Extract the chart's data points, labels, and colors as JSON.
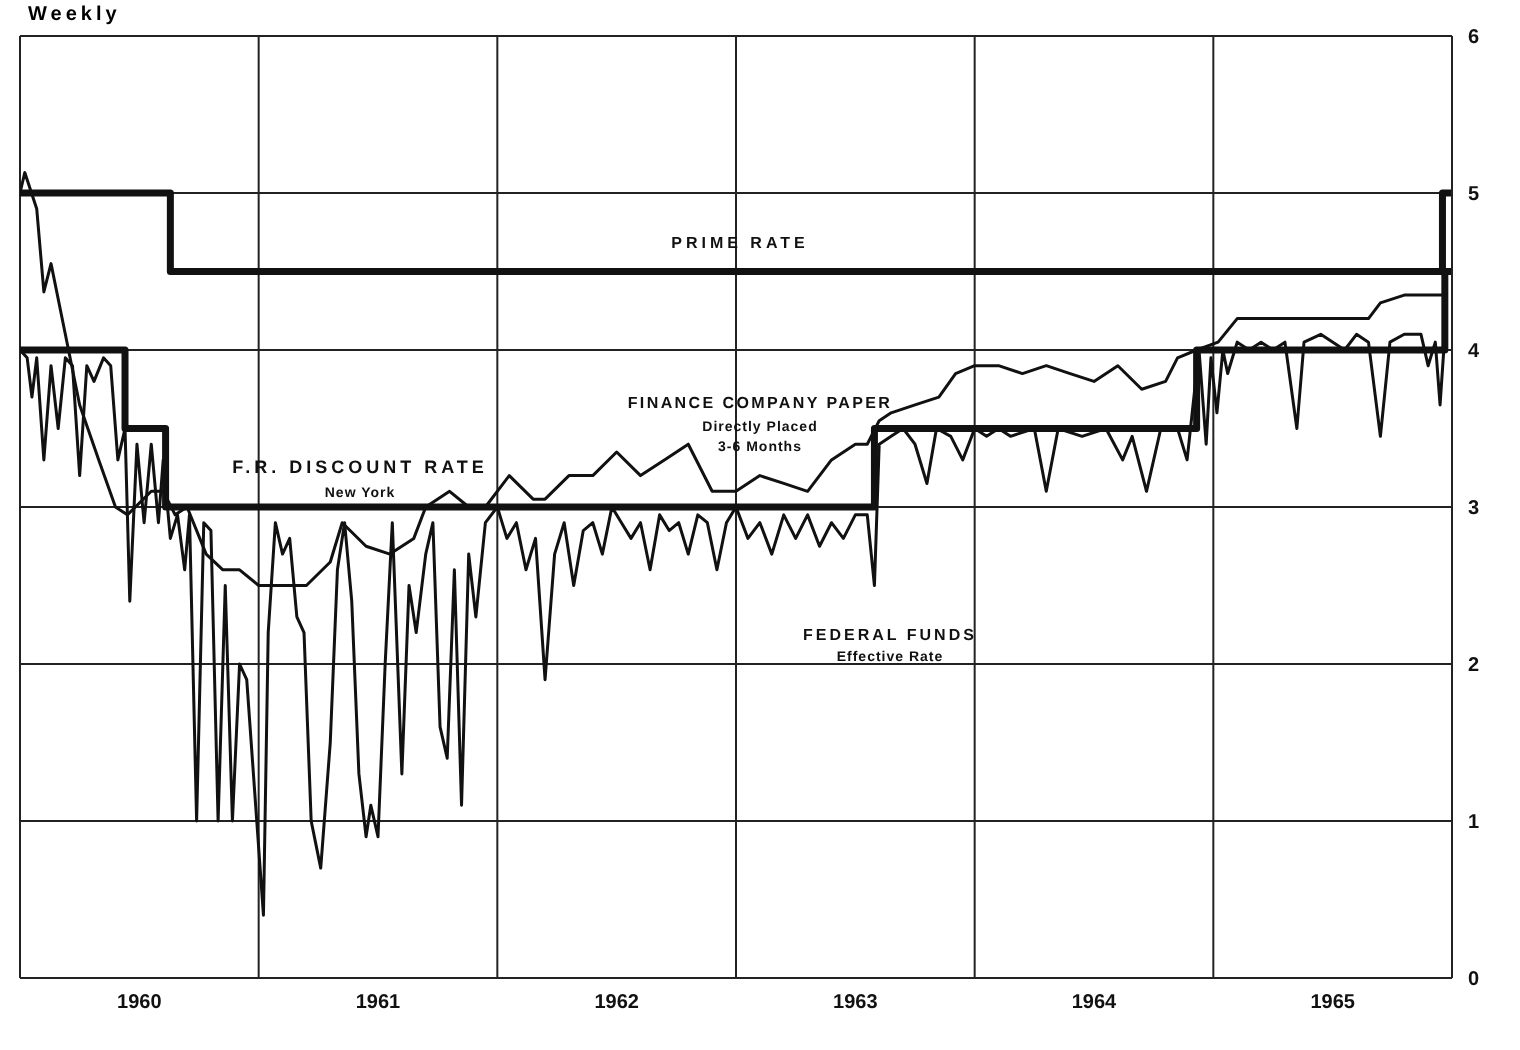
{
  "chart_data": {
    "type": "line",
    "subtitle": "Weekly",
    "xlim": [
      1960,
      1966
    ],
    "xticks": [
      {
        "value": 1960,
        "label": null
      },
      {
        "value": 1960.5,
        "label": "1960"
      },
      {
        "value": 1961,
        "label": null
      },
      {
        "value": 1961.5,
        "label": "1961"
      },
      {
        "value": 1962,
        "label": null
      },
      {
        "value": 1962.5,
        "label": "1962"
      },
      {
        "value": 1963,
        "label": null
      },
      {
        "value": 1963.5,
        "label": "1963"
      },
      {
        "value": 1964,
        "label": null
      },
      {
        "value": 1964.5,
        "label": "1964"
      },
      {
        "value": 1965,
        "label": null
      },
      {
        "value": 1965.5,
        "label": "1965"
      },
      {
        "value": 1966,
        "label": null
      }
    ],
    "ylim": [
      0,
      6
    ],
    "yticks": [
      0,
      1,
      2,
      3,
      4,
      5,
      6
    ],
    "grid": true,
    "marker": "none",
    "series": [
      {
        "type": "step",
        "color": "#111111",
        "x": [
          1960,
          1960.63,
          1965.96,
          1966
        ],
        "values": [
          5,
          4.5,
          5,
          5
        ]
      },
      {
        "type": "step",
        "color": "#111111",
        "x": [
          1960,
          1960.44,
          1960.61,
          1963.58,
          1964.93,
          1965.97,
          1966
        ],
        "values": [
          4,
          3.5,
          3,
          3.5,
          4,
          4.5,
          4.5
        ]
      },
      {
        "color": "#111111",
        "x": [
          1960,
          1960.02,
          1960.07,
          1960.1,
          1960.13,
          1960.17,
          1960.25,
          1960.33,
          1960.4,
          1960.45,
          1960.55,
          1960.6,
          1960.65,
          1960.7,
          1960.78,
          1960.85,
          1960.92,
          1961,
          1961.1,
          1961.2,
          1961.3,
          1961.35,
          1961.45,
          1961.55,
          1961.6,
          1961.65,
          1961.7,
          1961.8,
          1961.88,
          1961.95,
          1962.05,
          1962.15,
          1962.2,
          1962.3,
          1962.4,
          1962.5,
          1962.6,
          1962.7,
          1962.8,
          1962.9,
          1963,
          1963.1,
          1963.2,
          1963.3,
          1963.4,
          1963.5,
          1963.55,
          1963.6,
          1963.65,
          1963.75,
          1963.85,
          1963.92,
          1964,
          1964.1,
          1964.2,
          1964.3,
          1964.4,
          1964.5,
          1964.6,
          1964.7,
          1964.8,
          1964.85,
          1964.93,
          1965.02,
          1965.1,
          1965.2,
          1965.3,
          1965.4,
          1965.5,
          1965.6,
          1965.65,
          1965.7,
          1965.8,
          1965.9,
          1965.97
        ],
        "values": [
          5,
          5.13,
          4.9,
          4.37,
          4.55,
          4.25,
          3.65,
          3.3,
          3.0,
          2.95,
          3.1,
          3.1,
          2.95,
          3.0,
          2.7,
          2.6,
          2.6,
          2.5,
          2.5,
          2.5,
          2.65,
          2.9,
          2.75,
          2.7,
          2.75,
          2.8,
          3.0,
          3.1,
          3.0,
          3.0,
          3.2,
          3.05,
          3.05,
          3.2,
          3.2,
          3.35,
          3.2,
          3.3,
          3.4,
          3.1,
          3.1,
          3.2,
          3.15,
          3.1,
          3.3,
          3.4,
          3.4,
          3.55,
          3.6,
          3.65,
          3.7,
          3.85,
          3.9,
          3.9,
          3.85,
          3.9,
          3.85,
          3.8,
          3.9,
          3.75,
          3.8,
          3.95,
          4.0,
          4.05,
          4.2,
          4.2,
          4.2,
          4.2,
          4.2,
          4.2,
          4.2,
          4.3,
          4.35,
          4.35,
          4.35
        ]
      },
      {
        "color": "#111111",
        "x": [
          1960,
          1960.03,
          1960.05,
          1960.07,
          1960.1,
          1960.13,
          1960.16,
          1960.19,
          1960.22,
          1960.25,
          1960.28,
          1960.31,
          1960.35,
          1960.38,
          1960.41,
          1960.44,
          1960.46,
          1960.49,
          1960.52,
          1960.55,
          1960.58,
          1960.6,
          1960.63,
          1960.66,
          1960.69,
          1960.71,
          1960.74,
          1960.77,
          1960.8,
          1960.83,
          1960.86,
          1960.89,
          1960.92,
          1960.95,
          1961.02,
          1961.04,
          1961.07,
          1961.1,
          1961.13,
          1961.16,
          1961.19,
          1961.22,
          1961.26,
          1961.3,
          1961.33,
          1961.36,
          1961.39,
          1961.42,
          1961.45,
          1961.47,
          1961.5,
          1961.53,
          1961.56,
          1961.6,
          1961.63,
          1961.66,
          1961.7,
          1961.73,
          1961.76,
          1961.79,
          1961.82,
          1961.85,
          1961.88,
          1961.91,
          1961.95,
          1962,
          1962.04,
          1962.08,
          1962.12,
          1962.16,
          1962.2,
          1962.24,
          1962.28,
          1962.32,
          1962.36,
          1962.4,
          1962.44,
          1962.48,
          1962.52,
          1962.56,
          1962.6,
          1962.64,
          1962.68,
          1962.72,
          1962.76,
          1962.8,
          1962.84,
          1962.88,
          1962.92,
          1962.96,
          1963,
          1963.05,
          1963.1,
          1963.15,
          1963.2,
          1963.25,
          1963.3,
          1963.35,
          1963.4,
          1963.45,
          1963.5,
          1963.55,
          1963.58,
          1963.6,
          1963.65,
          1963.7,
          1963.75,
          1963.8,
          1963.84,
          1963.9,
          1963.95,
          1964,
          1964.05,
          1964.1,
          1964.15,
          1964.25,
          1964.3,
          1964.35,
          1964.45,
          1964.55,
          1964.62,
          1964.66,
          1964.72,
          1964.78,
          1964.85,
          1964.89,
          1964.94,
          1964.97,
          1964.99,
          1965.015,
          1965.04,
          1965.06,
          1965.1,
          1965.15,
          1965.2,
          1965.25,
          1965.3,
          1965.35,
          1965.38,
          1965.45,
          1965.55,
          1965.6,
          1965.65,
          1965.7,
          1965.74,
          1965.8,
          1965.87,
          1965.9,
          1965.93,
          1965.95,
          1965.97
        ],
        "values": [
          4,
          3.95,
          3.7,
          3.95,
          3.3,
          3.9,
          3.5,
          3.95,
          3.9,
          3.2,
          3.9,
          3.8,
          3.95,
          3.9,
          3.3,
          3.5,
          2.4,
          3.4,
          2.9,
          3.4,
          2.9,
          3.3,
          2.8,
          2.95,
          2.6,
          2.95,
          1,
          2.9,
          2.85,
          1,
          2.5,
          1,
          2,
          1.9,
          0.4,
          2.2,
          2.9,
          2.7,
          2.8,
          2.3,
          2.2,
          1,
          0.7,
          1.5,
          2.6,
          2.9,
          2.4,
          1.3,
          0.9,
          1.1,
          0.9,
          2,
          2.9,
          1.3,
          2.5,
          2.2,
          2.7,
          2.9,
          1.6,
          1.4,
          2.6,
          1.1,
          2.7,
          2.3,
          2.9,
          3,
          2.8,
          2.9,
          2.6,
          2.8,
          1.9,
          2.7,
          2.9,
          2.5,
          2.85,
          2.9,
          2.7,
          3,
          2.9,
          2.8,
          2.9,
          2.6,
          2.95,
          2.85,
          2.9,
          2.7,
          2.95,
          2.9,
          2.6,
          2.9,
          3,
          2.8,
          2.9,
          2.7,
          2.95,
          2.8,
          2.95,
          2.75,
          2.9,
          2.8,
          2.95,
          2.95,
          2.5,
          3.4,
          3.45,
          3.5,
          3.4,
          3.15,
          3.5,
          3.45,
          3.3,
          3.5,
          3.45,
          3.5,
          3.45,
          3.5,
          3.1,
          3.5,
          3.45,
          3.5,
          3.3,
          3.45,
          3.1,
          3.5,
          3.5,
          3.3,
          4,
          3.4,
          3.95,
          3.6,
          4,
          3.85,
          4.05,
          4,
          4.05,
          4,
          4.05,
          3.5,
          4.05,
          4.1,
          4,
          4.1,
          4.05,
          3.45,
          4.05,
          4.1,
          4.1,
          3.9,
          4.05,
          3.65,
          4.1
        ]
      }
    ],
    "annotations": [
      "PRIME RATE",
      "F.R. DISCOUNT RATE",
      "New York",
      "FINANCE COMPANY PAPER",
      "Directly Placed",
      "3-6 Months",
      "FEDERAL FUNDS",
      "Effective Rate"
    ]
  }
}
